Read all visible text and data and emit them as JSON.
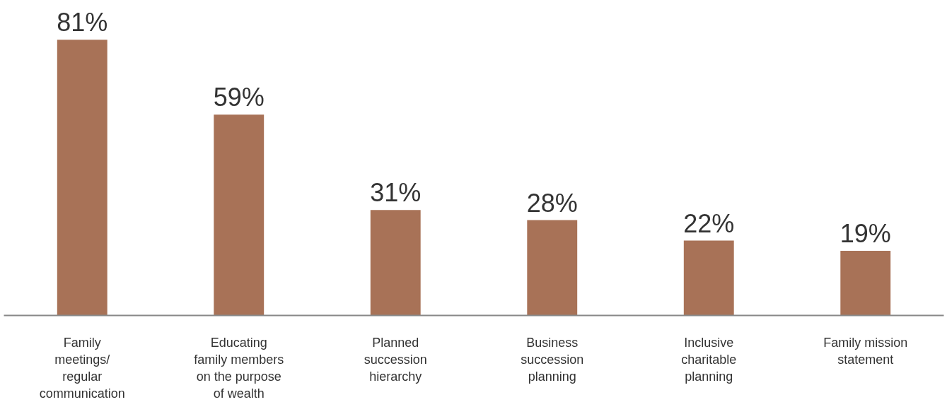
{
  "chart_data": {
    "type": "bar",
    "categories": [
      "Family meetings/ regular communication",
      "Educating family members on the purpose of wealth",
      "Planned succession hierarchy",
      "Business succession planning",
      "Inclusive charitable planning",
      "Family mission statement"
    ],
    "values": [
      81,
      59,
      31,
      28,
      22,
      19
    ],
    "value_labels": [
      "81%",
      "59%",
      "31%",
      "28%",
      "22%",
      "19%"
    ],
    "color": "#a87257",
    "grid": false
  }
}
